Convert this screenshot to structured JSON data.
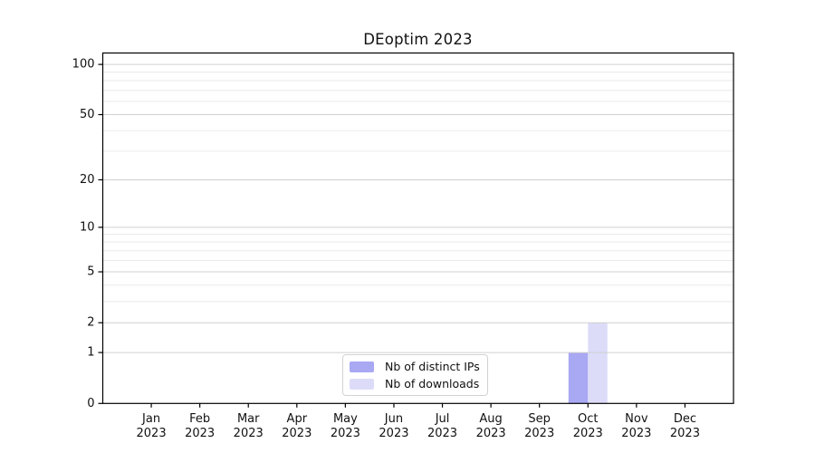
{
  "title": "DEoptim 2023",
  "legend": {
    "items": [
      {
        "label": "Nb of distinct IPs",
        "color": "#a8a8f3"
      },
      {
        "label": "Nb of downloads",
        "color": "#dcdcf9"
      }
    ],
    "position": "lower center"
  },
  "chart_data": {
    "type": "bar",
    "title": "DEoptim 2023",
    "categories": [
      "Jan",
      "Feb",
      "Mar",
      "Apr",
      "May",
      "Jun",
      "Jul",
      "Aug",
      "Sep",
      "Oct",
      "Nov",
      "Dec"
    ],
    "x_tick_year": "2023",
    "series": [
      {
        "name": "Nb of distinct IPs",
        "color": "#a8a8f3",
        "values": [
          0,
          0,
          0,
          0,
          0,
          0,
          0,
          0,
          0,
          1,
          0,
          0
        ]
      },
      {
        "name": "Nb of downloads",
        "color": "#dcdcf9",
        "values": [
          0,
          0,
          0,
          0,
          0,
          0,
          0,
          0,
          0,
          2,
          0,
          0
        ]
      }
    ],
    "y_scale": "log1p",
    "y_major_ticks": [
      0,
      1,
      2,
      5,
      10,
      20,
      50,
      100
    ],
    "y_minor_gridlines": [
      3,
      4,
      6,
      7,
      8,
      9,
      30,
      40,
      60,
      70,
      80,
      90
    ],
    "ylim": [
      0,
      117
    ],
    "grid": true,
    "legend_position": "lower center"
  },
  "colors": {
    "background": "#ffffff",
    "axis": "#000000",
    "grid_major": "#d0d0d0",
    "grid_minor": "#eaeaea",
    "text": "#111111",
    "legend_border": "#d2d2d2"
  }
}
